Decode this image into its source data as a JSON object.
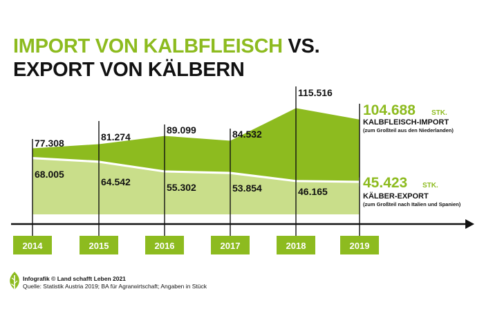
{
  "title": {
    "part1": "IMPORT VON KALBFLEISCH",
    "part2": "VS.",
    "line2": "EXPORT VON KÄLBERN"
  },
  "chart_data": {
    "type": "area",
    "categories": [
      "2014",
      "2015",
      "2016",
      "2017",
      "2018",
      "2019"
    ],
    "series": [
      {
        "name": "KALBFLEISCH-IMPORT",
        "values": [
          77308,
          81274,
          89099,
          84532,
          115516,
          104688
        ],
        "labels": [
          "77.308",
          "81.274",
          "89.099",
          "84.532",
          "115.516",
          "104.688"
        ],
        "unit": "STK.",
        "note": "(zum Großteil aus den Niederlanden)",
        "color": "#8dbb1f"
      },
      {
        "name": "KÄLBER-EXPORT",
        "values": [
          68005,
          64542,
          55302,
          53854,
          46165,
          45423
        ],
        "labels": [
          "68.005",
          "64.542",
          "55.302",
          "53.854",
          "46.165",
          "45.423"
        ],
        "unit": "STK.",
        "note": "(zum Großteil nach Italien und Spanien)",
        "color": "#c9de8a"
      }
    ],
    "ylim": [
      0,
      130000
    ],
    "grid": false,
    "legend": "right"
  },
  "colors": {
    "brand_green": "#8dbb1f",
    "light_green": "#c9de8a",
    "axis": "#111111",
    "text": "#111111"
  },
  "footer": {
    "credit": "Infografik © Land schafft Leben 2021",
    "source": "Quelle: Statistik Austria 2019; BA für Agrarwirtschaft; Angaben in Stück"
  },
  "logo_icon": "leaf-icon"
}
